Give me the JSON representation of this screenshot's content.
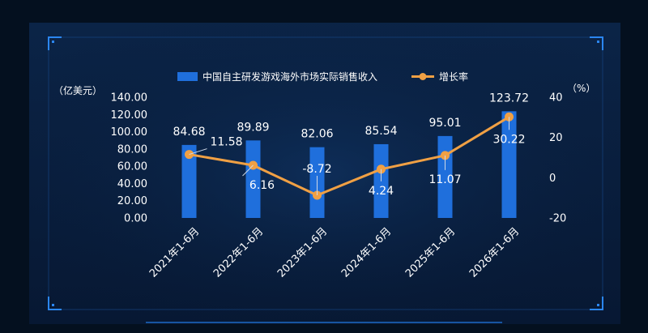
{
  "colors": {
    "background": "#04101f",
    "panel": "#0a1e3d",
    "frame": "#1e6fd0",
    "bar": "#1f6fdc",
    "line": "#f0a044",
    "text": "#ffffff"
  },
  "chart_data": {
    "type": "bar+line",
    "categories": [
      "2021年1-6月",
      "2022年1-6月",
      "2023年1-6月",
      "2024年1-6月",
      "2025年1-6月",
      "2026年1-6月"
    ],
    "series": [
      {
        "name": "中国自主研发游戏海外市场实际销售收入",
        "type": "bar",
        "axis": "left",
        "values": [
          84.68,
          89.89,
          82.06,
          85.54,
          95.01,
          123.72
        ],
        "labels": [
          "84.68",
          "89.89",
          "82.06",
          "85.54",
          "95.01",
          "123.72"
        ]
      },
      {
        "name": "增长率",
        "type": "line",
        "axis": "right",
        "values": [
          11.58,
          6.16,
          -8.72,
          4.24,
          11.07,
          30.22
        ],
        "labels": [
          "11.58",
          "6.16",
          "-8.72",
          "4.24",
          "11.07",
          "30.22"
        ]
      }
    ],
    "y_left": {
      "label": "（亿美元）",
      "range": [
        0,
        140
      ],
      "ticks": [
        "0.00",
        "20.00",
        "40.00",
        "60.00",
        "80.00",
        "100.00",
        "120.00",
        "140.00"
      ]
    },
    "y_right": {
      "label": "（%）",
      "range": [
        -20,
        40
      ],
      "ticks": [
        "-20",
        "0",
        "20",
        "40"
      ]
    },
    "grid": false,
    "legend_position": "top-center"
  }
}
